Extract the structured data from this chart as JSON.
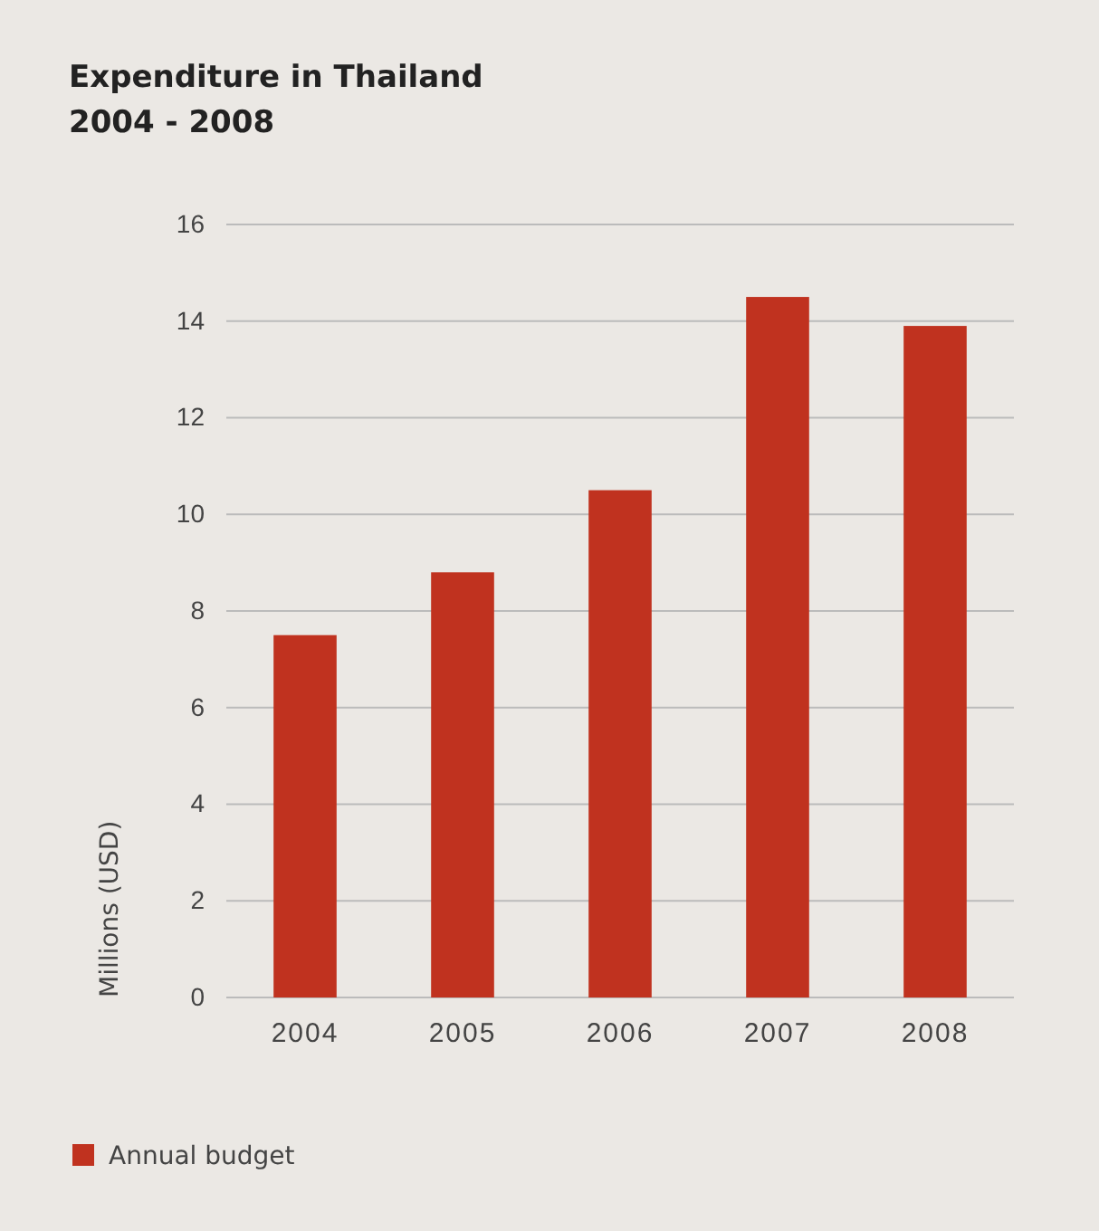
{
  "chart_data": {
    "type": "bar",
    "title": "Expenditure in Thailand",
    "subtitle": "2004 - 2008",
    "ylabel": "Millions (USD)",
    "categories": [
      "2004",
      "2005",
      "2006",
      "2007",
      "2008"
    ],
    "series": [
      {
        "name": "Annual budget",
        "color": "#c0321f",
        "values": [
          7.5,
          8.8,
          10.5,
          14.5,
          13.9
        ]
      }
    ],
    "ylim": [
      0,
      16
    ],
    "yticks": [
      0,
      2,
      4,
      6,
      8,
      10,
      12,
      14,
      16
    ],
    "grid": "y",
    "legend": "bottom left"
  }
}
